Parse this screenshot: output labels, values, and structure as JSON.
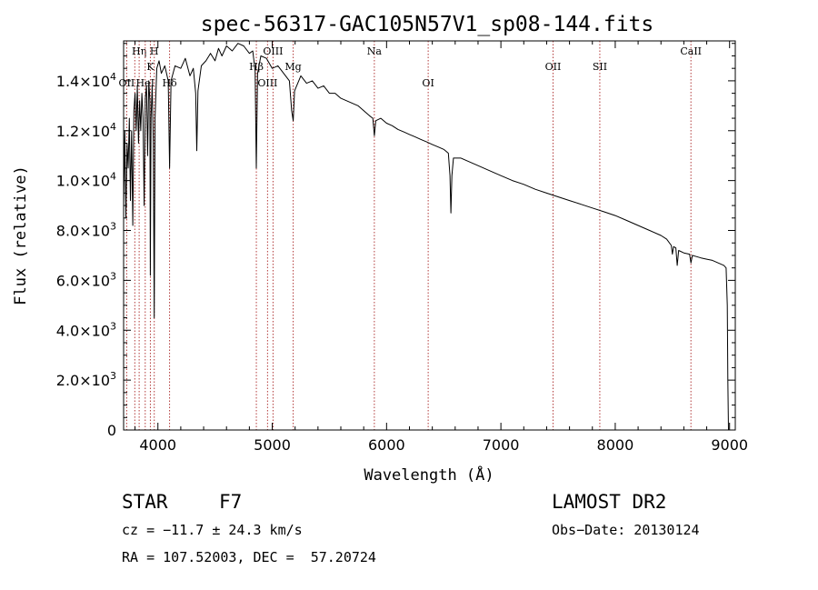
{
  "chart_data": {
    "type": "line",
    "title": "spec-56317-GAC105N57V1_sp08-144.fits",
    "xlabel": "Wavelength (Å)",
    "ylabel": "Flux (relative)",
    "xlim": [
      3700,
      9050
    ],
    "ylim": [
      0,
      15600
    ],
    "x_ticks": [
      {
        "value": 4000,
        "label": "4000"
      },
      {
        "value": 5000,
        "label": "5000"
      },
      {
        "value": 6000,
        "label": "6000"
      },
      {
        "value": 7000,
        "label": "7000"
      },
      {
        "value": 8000,
        "label": "8000"
      },
      {
        "value": 9000,
        "label": "9000"
      }
    ],
    "y_ticks": [
      {
        "value": 0,
        "mant": "0",
        "exp": ""
      },
      {
        "value": 2000,
        "mant": "2.0×10",
        "exp": "3"
      },
      {
        "value": 4000,
        "mant": "4.0×10",
        "exp": "3"
      },
      {
        "value": 6000,
        "mant": "6.0×10",
        "exp": "3"
      },
      {
        "value": 8000,
        "mant": "8.0×10",
        "exp": "3"
      },
      {
        "value": 10000,
        "mant": "1.0×10",
        "exp": "4"
      },
      {
        "value": 12000,
        "mant": "1.2×10",
        "exp": "4"
      },
      {
        "value": 14000,
        "mant": "1.4×10",
        "exp": "4"
      }
    ],
    "series": [
      {
        "color": "#000000",
        "points": [
          [
            3700,
            9000
          ],
          [
            3710,
            12000
          ],
          [
            3720,
            8500
          ],
          [
            3730,
            11500
          ],
          [
            3740,
            10500
          ],
          [
            3750,
            12500
          ],
          [
            3760,
            9200
          ],
          [
            3770,
            12000
          ],
          [
            3780,
            8200
          ],
          [
            3790,
            12800
          ],
          [
            3800,
            13500
          ],
          [
            3810,
            12000
          ],
          [
            3820,
            13800
          ],
          [
            3830,
            11500
          ],
          [
            3840,
            13200
          ],
          [
            3850,
            12000
          ],
          [
            3860,
            13500
          ],
          [
            3870,
            12500
          ],
          [
            3880,
            9000
          ],
          [
            3890,
            13300
          ],
          [
            3900,
            13800
          ],
          [
            3910,
            11000
          ],
          [
            3920,
            14000
          ],
          [
            3930,
            13200
          ],
          [
            3934,
            6200
          ],
          [
            3940,
            12500
          ],
          [
            3950,
            13800
          ],
          [
            3960,
            11500
          ],
          [
            3968,
            4500
          ],
          [
            3975,
            12500
          ],
          [
            3990,
            14500
          ],
          [
            4010,
            14800
          ],
          [
            4030,
            14300
          ],
          [
            4060,
            14600
          ],
          [
            4090,
            14000
          ],
          [
            4102,
            10500
          ],
          [
            4115,
            14000
          ],
          [
            4150,
            14600
          ],
          [
            4200,
            14500
          ],
          [
            4240,
            14900
          ],
          [
            4280,
            14200
          ],
          [
            4310,
            14500
          ],
          [
            4330,
            13500
          ],
          [
            4340,
            11200
          ],
          [
            4350,
            13600
          ],
          [
            4380,
            14600
          ],
          [
            4420,
            14800
          ],
          [
            4460,
            15100
          ],
          [
            4500,
            14800
          ],
          [
            4530,
            15300
          ],
          [
            4560,
            15000
          ],
          [
            4600,
            15400
          ],
          [
            4650,
            15200
          ],
          [
            4700,
            15500
          ],
          [
            4750,
            15400
          ],
          [
            4800,
            15100
          ],
          [
            4830,
            15200
          ],
          [
            4850,
            14400
          ],
          [
            4861,
            10500
          ],
          [
            4872,
            14300
          ],
          [
            4900,
            15000
          ],
          [
            4950,
            14900
          ],
          [
            5000,
            14500
          ],
          [
            5050,
            14600
          ],
          [
            5100,
            14300
          ],
          [
            5150,
            14000
          ],
          [
            5170,
            12800
          ],
          [
            5183,
            12400
          ],
          [
            5195,
            13600
          ],
          [
            5250,
            14200
          ],
          [
            5300,
            13900
          ],
          [
            5350,
            14000
          ],
          [
            5400,
            13700
          ],
          [
            5450,
            13800
          ],
          [
            5500,
            13500
          ],
          [
            5550,
            13500
          ],
          [
            5600,
            13300
          ],
          [
            5650,
            13200
          ],
          [
            5700,
            13100
          ],
          [
            5750,
            13000
          ],
          [
            5800,
            12800
          ],
          [
            5850,
            12600
          ],
          [
            5880,
            12500
          ],
          [
            5893,
            11800
          ],
          [
            5905,
            12400
          ],
          [
            5950,
            12500
          ],
          [
            6000,
            12300
          ],
          [
            6050,
            12200
          ],
          [
            6100,
            12050
          ],
          [
            6150,
            11950
          ],
          [
            6200,
            11850
          ],
          [
            6250,
            11750
          ],
          [
            6300,
            11650
          ],
          [
            6350,
            11550
          ],
          [
            6400,
            11450
          ],
          [
            6450,
            11350
          ],
          [
            6500,
            11250
          ],
          [
            6540,
            11100
          ],
          [
            6555,
            10200
          ],
          [
            6563,
            8700
          ],
          [
            6571,
            10200
          ],
          [
            6585,
            10900
          ],
          [
            6650,
            10900
          ],
          [
            6700,
            10800
          ],
          [
            6800,
            10600
          ],
          [
            6900,
            10400
          ],
          [
            7000,
            10200
          ],
          [
            7100,
            10000
          ],
          [
            7200,
            9850
          ],
          [
            7300,
            9650
          ],
          [
            7400,
            9500
          ],
          [
            7500,
            9350
          ],
          [
            7600,
            9200
          ],
          [
            7700,
            9050
          ],
          [
            7800,
            8900
          ],
          [
            7900,
            8750
          ],
          [
            8000,
            8600
          ],
          [
            8100,
            8400
          ],
          [
            8200,
            8200
          ],
          [
            8300,
            8000
          ],
          [
            8400,
            7800
          ],
          [
            8450,
            7650
          ],
          [
            8490,
            7400
          ],
          [
            8500,
            7050
          ],
          [
            8510,
            7350
          ],
          [
            8530,
            7300
          ],
          [
            8542,
            6600
          ],
          [
            8555,
            7200
          ],
          [
            8600,
            7100
          ],
          [
            8650,
            7050
          ],
          [
            8662,
            6700
          ],
          [
            8675,
            7000
          ],
          [
            8750,
            6900
          ],
          [
            8800,
            6850
          ],
          [
            8850,
            6800
          ],
          [
            8900,
            6700
          ],
          [
            8950,
            6600
          ],
          [
            8970,
            6500
          ],
          [
            8980,
            5000
          ],
          [
            8985,
            2000
          ],
          [
            8990,
            0
          ]
        ]
      }
    ],
    "lines": [
      {
        "x": 3727,
        "label": "OII",
        "level": 2
      },
      {
        "x": 3798,
        "label": "",
        "level": 0
      },
      {
        "x": 3836,
        "label": "Hη",
        "level": 0
      },
      {
        "x": 3889,
        "label": "HeI",
        "level": 2
      },
      {
        "x": 3934,
        "label": "K",
        "level": 1
      },
      {
        "x": 3968,
        "label": "H",
        "level": 0
      },
      {
        "x": 4102,
        "label": "Hδ",
        "level": 2
      },
      {
        "x": 4861,
        "label": "Hβ",
        "level": 1
      },
      {
        "x": 4959,
        "label": "OIII",
        "level": 2
      },
      {
        "x": 5007,
        "label": "OIII",
        "level": 0
      },
      {
        "x": 5183,
        "label": "Mg",
        "level": 1
      },
      {
        "x": 5893,
        "label": "Na",
        "level": 0
      },
      {
        "x": 6364,
        "label": "OI",
        "level": 2
      },
      {
        "x": 7456,
        "label": "OII",
        "level": 1
      },
      {
        "x": 7865,
        "label": "SII",
        "level": 1
      },
      {
        "x": 8662,
        "label": "CaII",
        "level": 0
      }
    ],
    "line_color": "#b23a3a",
    "grid": false,
    "legend": "none"
  },
  "info": {
    "object_class": "STAR",
    "subclass": "F7",
    "survey": "LAMOST DR2",
    "redshift": "cz = −11.7 ± 24.3 km/s",
    "obs_date": "Obs−Date: 20130124",
    "coords": "RA = 107.52003, DEC =  57.20724"
  }
}
